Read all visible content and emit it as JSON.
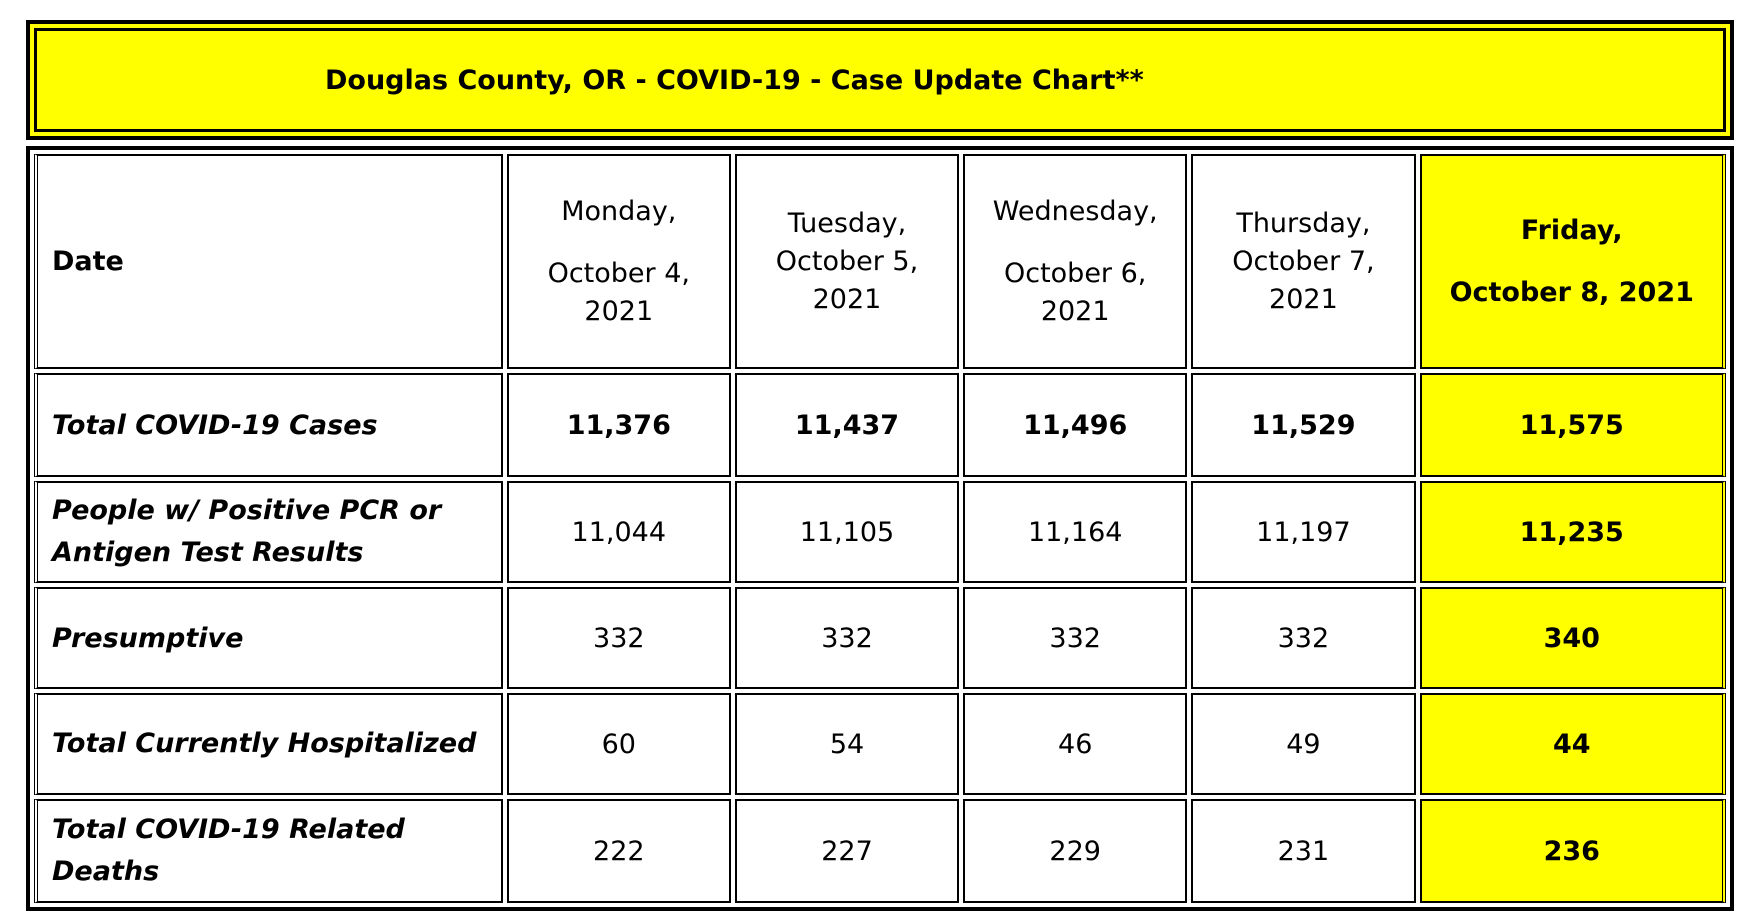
{
  "title": "Douglas County, OR - COVID-19 - Case Update Chart**",
  "header": {
    "label": "Date",
    "days": [
      {
        "line1": "Monday,",
        "line2": "October 4,",
        "line3": "2021"
      },
      {
        "line1": "Tuesday,",
        "line2": "October 5,",
        "line3": "2021"
      },
      {
        "line1": "Wednesday,",
        "line2": "October 6,",
        "line3": "2021"
      },
      {
        "line1": "Thursday,",
        "line2": "October 7,",
        "line3": "2021"
      },
      {
        "line1": "Friday,",
        "line2": "October 8, 2021"
      }
    ]
  },
  "rows": [
    {
      "label": "Total COVID-19 Cases",
      "values": [
        "11,376",
        "11,437",
        "11,496",
        "11,529",
        "11,575"
      ]
    },
    {
      "label": "People w/ Positive PCR or Antigen Test Results",
      "values": [
        "11,044",
        "11,105",
        "11,164",
        "11,197",
        "11,235"
      ]
    },
    {
      "label": "Presumptive",
      "values": [
        "332",
        "332",
        "332",
        "332",
        "340"
      ]
    },
    {
      "label": "Total Currently Hospitalized",
      "values": [
        "60",
        "54",
        "46",
        "49",
        "44"
      ]
    },
    {
      "label": "Total COVID-19 Related Deaths",
      "values": [
        "222",
        "227",
        "229",
        "231",
        "236"
      ]
    }
  ],
  "colors": {
    "highlight": "#ffff00",
    "border": "#000000"
  }
}
